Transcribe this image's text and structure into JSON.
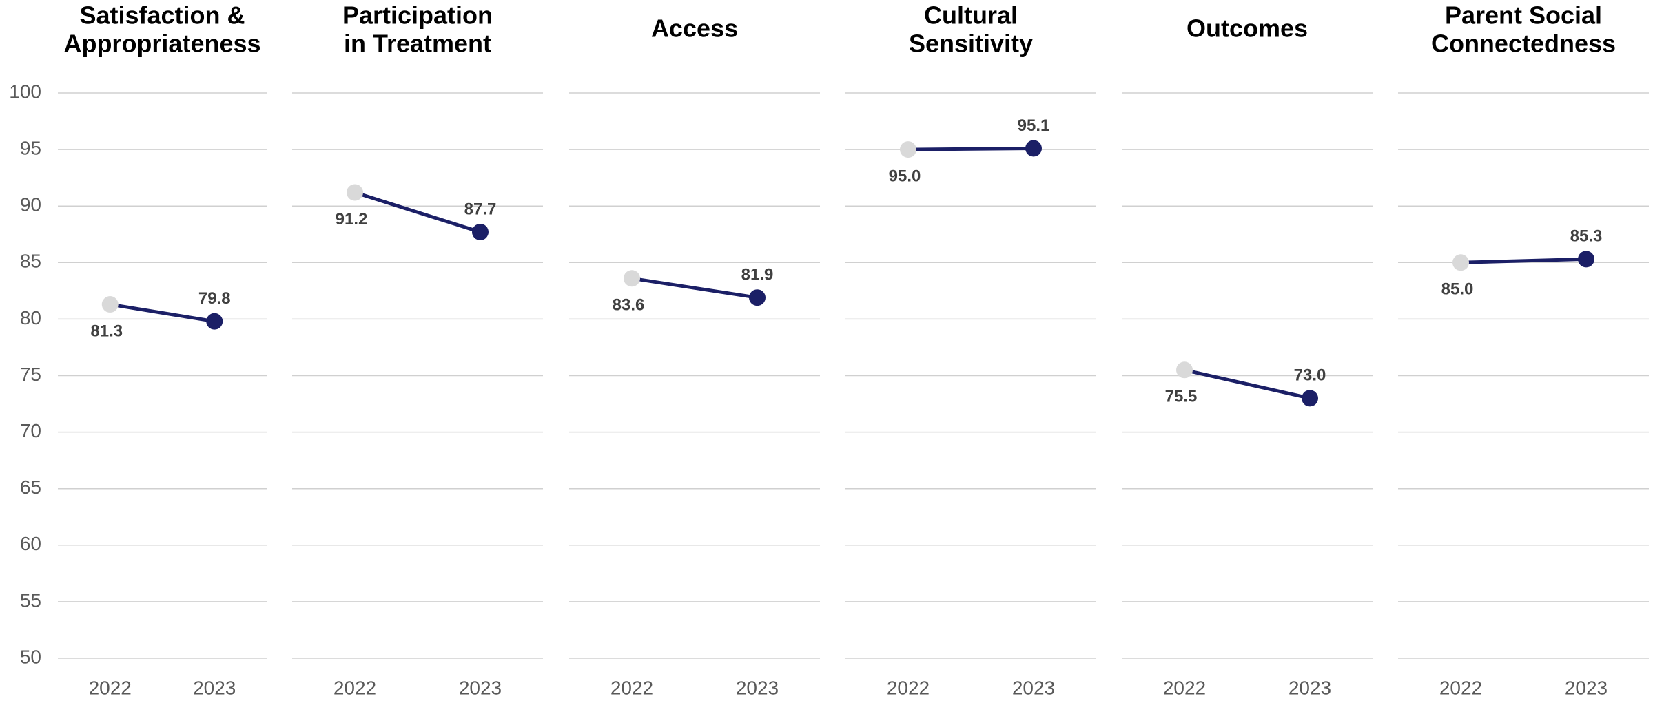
{
  "chart_data": [
    {
      "type": "line",
      "title": [
        "Satisfaction &",
        "Appropriateness"
      ],
      "categories": [
        "2022",
        "2023"
      ],
      "values": [
        81.3,
        79.8
      ],
      "value_labels": [
        "81.3",
        "79.8"
      ],
      "color": "#1b1f66",
      "point_colors": [
        "#d9d9d9",
        "#1b1f66"
      ],
      "ylim": [
        50,
        100
      ],
      "yticks": [
        50,
        55,
        60,
        65,
        70,
        75,
        80,
        85,
        90,
        95,
        100
      ],
      "ytick_labels": true,
      "grid": true
    },
    {
      "type": "line",
      "title": [
        "Participation",
        "in Treatment"
      ],
      "categories": [
        "2022",
        "2023"
      ],
      "values": [
        91.2,
        87.7
      ],
      "value_labels": [
        "91.2",
        "87.7"
      ],
      "color": "#1b1f66",
      "point_colors": [
        "#d9d9d9",
        "#1b1f66"
      ],
      "ylim": [
        50,
        100
      ],
      "yticks": [
        50,
        55,
        60,
        65,
        70,
        75,
        80,
        85,
        90,
        95,
        100
      ],
      "ytick_labels": false,
      "grid": true
    },
    {
      "type": "line",
      "title": [
        "Access"
      ],
      "categories": [
        "2022",
        "2023"
      ],
      "values": [
        83.6,
        81.9
      ],
      "value_labels": [
        "83.6",
        "81.9"
      ],
      "color": "#1b1f66",
      "point_colors": [
        "#d9d9d9",
        "#1b1f66"
      ],
      "ylim": [
        50,
        100
      ],
      "yticks": [
        50,
        55,
        60,
        65,
        70,
        75,
        80,
        85,
        90,
        95,
        100
      ],
      "ytick_labels": false,
      "grid": true
    },
    {
      "type": "line",
      "title": [
        "Cultural",
        "Sensitivity"
      ],
      "categories": [
        "2022",
        "2023"
      ],
      "values": [
        95.0,
        95.1
      ],
      "value_labels": [
        "95.0",
        "95.1"
      ],
      "color": "#1b1f66",
      "point_colors": [
        "#d9d9d9",
        "#1b1f66"
      ],
      "ylim": [
        50,
        100
      ],
      "yticks": [
        50,
        55,
        60,
        65,
        70,
        75,
        80,
        85,
        90,
        95,
        100
      ],
      "ytick_labels": false,
      "grid": true
    },
    {
      "type": "line",
      "title": [
        "Outcomes"
      ],
      "categories": [
        "2022",
        "2023"
      ],
      "values": [
        75.5,
        73.0
      ],
      "value_labels": [
        "75.5",
        "73.0"
      ],
      "color": "#1b1f66",
      "point_colors": [
        "#d9d9d9",
        "#1b1f66"
      ],
      "ylim": [
        50,
        100
      ],
      "yticks": [
        50,
        55,
        60,
        65,
        70,
        75,
        80,
        85,
        90,
        95,
        100
      ],
      "ytick_labels": false,
      "grid": true
    },
    {
      "type": "line",
      "title": [
        "Parent Social",
        "Connectedness"
      ],
      "categories": [
        "2022",
        "2023"
      ],
      "values": [
        85.0,
        85.3
      ],
      "value_labels": [
        "85.0",
        "85.3"
      ],
      "color": "#1b1f66",
      "point_colors": [
        "#d9d9d9",
        "#1b1f66"
      ],
      "ylim": [
        50,
        100
      ],
      "yticks": [
        50,
        55,
        60,
        65,
        70,
        75,
        80,
        85,
        90,
        95,
        100
      ],
      "ytick_labels": false,
      "grid": true
    }
  ]
}
